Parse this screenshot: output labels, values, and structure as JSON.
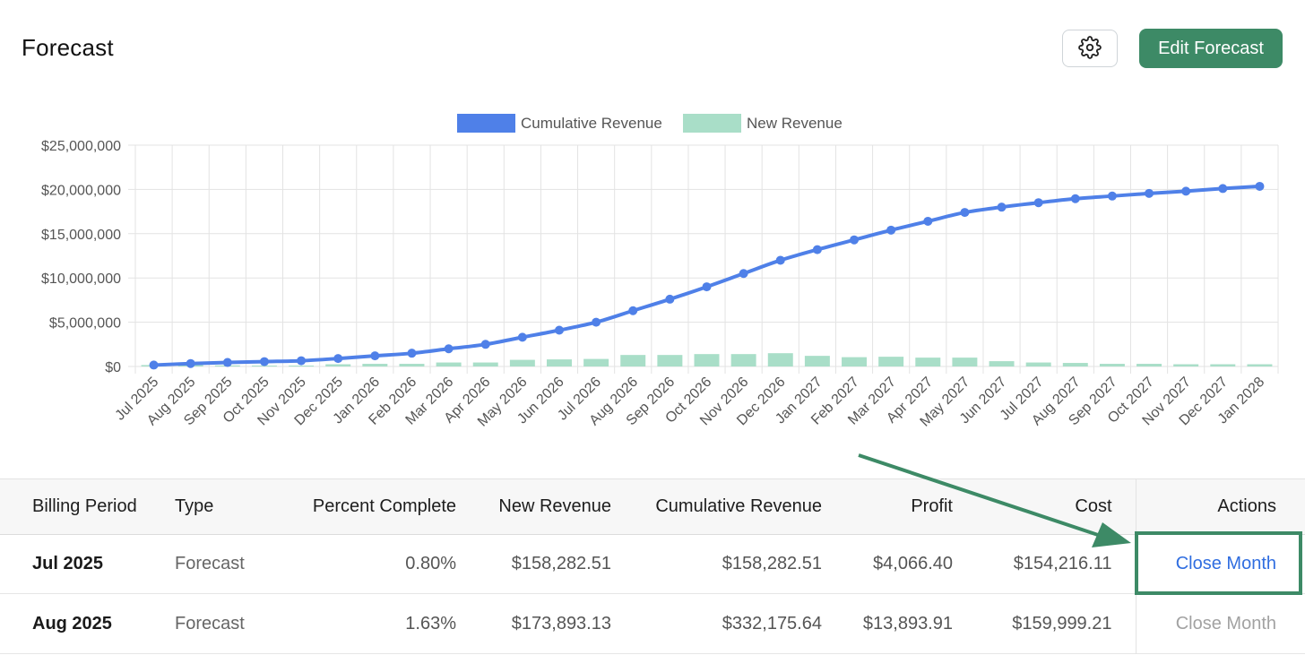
{
  "header": {
    "title": "Forecast",
    "edit_label": "Edit Forecast"
  },
  "icons": {
    "settings": "gear-icon"
  },
  "colors": {
    "accent_green": "#3d8a66",
    "cumulative_line": "#4f80e8",
    "new_revenue_bar": "#a9dec8",
    "link_blue": "#2f6de0"
  },
  "chart_data": {
    "type": "line",
    "legend": [
      "Cumulative Revenue",
      "New Revenue"
    ],
    "legend_position": "top-center",
    "grid": true,
    "ylim": [
      0,
      25000000
    ],
    "yticks": [
      "$25,000,000",
      "$20,000,000",
      "$15,000,000",
      "$10,000,000",
      "$5,000,000",
      "$0"
    ],
    "ytick_values": [
      25000000,
      20000000,
      15000000,
      10000000,
      5000000,
      0
    ],
    "categories": [
      "Jul 2025",
      "Aug 2025",
      "Sep 2025",
      "Oct 2025",
      "Nov 2025",
      "Dec 2025",
      "Jan 2026",
      "Feb 2026",
      "Mar 2026",
      "Apr 2026",
      "May 2026",
      "Jun 2026",
      "Jul 2026",
      "Aug 2026",
      "Sep 2026",
      "Oct 2026",
      "Nov 2026",
      "Dec 2026",
      "Jan 2027",
      "Feb 2027",
      "Mar 2027",
      "Apr 2027",
      "May 2027",
      "Jun 2027",
      "Jul 2027",
      "Aug 2027",
      "Sep 2027",
      "Oct 2027",
      "Nov 2027",
      "Dec 2027",
      "Jan 2028"
    ],
    "series": [
      {
        "name": "Cumulative Revenue",
        "type": "line",
        "values": [
          158283,
          332176,
          450000,
          550000,
          650000,
          900000,
          1200000,
          1500000,
          2000000,
          2500000,
          3300000,
          4100000,
          5000000,
          6300000,
          7600000,
          9000000,
          10500000,
          12000000,
          13200000,
          14300000,
          15400000,
          16400000,
          17400000,
          18000000,
          18500000,
          18950000,
          19250000,
          19550000,
          19800000,
          20100000,
          20350000
        ]
      },
      {
        "name": "New Revenue",
        "type": "bar",
        "values": [
          158283,
          173893,
          120000,
          100000,
          100000,
          250000,
          300000,
          300000,
          450000,
          450000,
          750000,
          800000,
          850000,
          1300000,
          1300000,
          1400000,
          1400000,
          1500000,
          1200000,
          1050000,
          1100000,
          1000000,
          1000000,
          600000,
          450000,
          400000,
          300000,
          300000,
          250000,
          250000,
          250000
        ]
      }
    ]
  },
  "table": {
    "headers": {
      "billing_period": "Billing Period",
      "type": "Type",
      "percent_complete": "Percent Complete",
      "new_revenue": "New Revenue",
      "cumulative_revenue": "Cumulative Revenue",
      "profit": "Profit",
      "cost": "Cost",
      "actions": "Actions"
    },
    "rows": [
      {
        "period": "Jul 2025",
        "type": "Forecast",
        "percent": "0.80%",
        "new_revenue": "$158,282.51",
        "cumulative_revenue": "$158,282.51",
        "profit": "$4,066.40",
        "cost": "$154,216.11",
        "action": "Close Month",
        "action_enabled": true
      },
      {
        "period": "Aug 2025",
        "type": "Forecast",
        "percent": "1.63%",
        "new_revenue": "$173,893.13",
        "cumulative_revenue": "$332,175.64",
        "profit": "$13,893.91",
        "cost": "$159,999.21",
        "action": "Close Month",
        "action_enabled": false
      }
    ]
  }
}
